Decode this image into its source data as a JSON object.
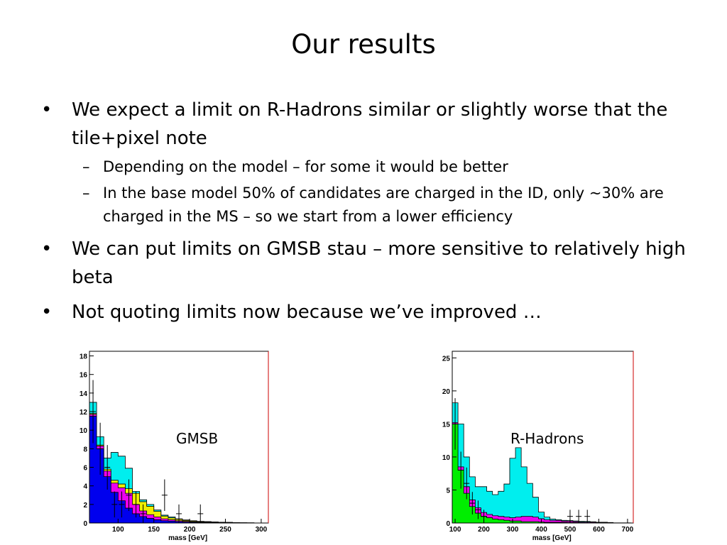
{
  "slide": {
    "title": "Our results",
    "bullets": [
      {
        "text": "We expect a limit on R-Hadrons similar or slightly worse that the tile+pixel note",
        "sub": [
          "Depending on the model – for some it would be better",
          "In the base model 50% of candidates are charged in the ID, only ~30% are charged in the MS – so we start from a lower efficiency"
        ]
      },
      {
        "text": "We can put limits on GMSB stau – more sensitive to relatively high beta",
        "sub": []
      },
      {
        "text": "Not quoting limits now because we’ve improved …",
        "sub": []
      }
    ],
    "bullet_glyph": "•",
    "dash_glyph": "–"
  },
  "chart_data": [
    {
      "type": "area",
      "stacked": true,
      "annotation": "GMSB",
      "xlabel": "mass [GeV]",
      "xlim": [
        60,
        310
      ],
      "ylim": [
        0,
        18.5
      ],
      "xticks": [
        100,
        150,
        200,
        250,
        300
      ],
      "yticks": [
        0,
        2,
        4,
        6,
        8,
        10,
        12,
        14,
        16,
        18
      ],
      "colors": {
        "blue": "#0000ee",
        "magenta": "#ee00ee",
        "yellow": "#eeee00",
        "cyan": "#00eeee"
      },
      "bin_edges": [
        60,
        70,
        80,
        90,
        100,
        110,
        120,
        130,
        140,
        150,
        160,
        170,
        180,
        190,
        200,
        210,
        220,
        230,
        240,
        250,
        260,
        270,
        280,
        290,
        300
      ],
      "series": [
        {
          "color": "blue",
          "values": [
            11.5,
            8.0,
            5.0,
            3.3,
            2.4,
            1.6,
            1.0,
            0.7,
            0.5,
            0.35,
            0.25,
            0.2,
            0.15,
            0.1,
            0.08,
            0.06,
            0.05,
            0.04,
            0.03,
            0.02,
            0.02,
            0.01,
            0.01,
            0.01
          ]
        },
        {
          "color": "magenta",
          "values": [
            0.2,
            0.3,
            0.6,
            1.0,
            1.4,
            1.6,
            1.0,
            0.6,
            0.4,
            0.3,
            0.2,
            0.15,
            0.1,
            0.08,
            0.06,
            0.05,
            0.04,
            0.03,
            0.02,
            0.02,
            0.01,
            0.01,
            0.01,
            0.0
          ]
        },
        {
          "color": "yellow",
          "values": [
            0.1,
            0.1,
            0.2,
            0.3,
            0.4,
            0.5,
            1.2,
            1.0,
            0.9,
            0.6,
            0.3,
            0.2,
            0.15,
            0.1,
            0.08,
            0.05,
            0.04,
            0.03,
            0.02,
            0.02,
            0.01,
            0.01,
            0.0,
            0.0
          ]
        },
        {
          "color": "cyan",
          "values": [
            1.2,
            0.9,
            1.2,
            3.0,
            3.0,
            2.2,
            0.2,
            0.2,
            0.2,
            0.15,
            0.1,
            0.1,
            0.05,
            0.05,
            0.03,
            0.02,
            0.02,
            0.01,
            0.01,
            0.01,
            0.01,
            0.0,
            0.0,
            0.0
          ]
        }
      ],
      "data_points": [
        {
          "x": 65,
          "y": 12,
          "err": 3.4
        },
        {
          "x": 75,
          "y": 8,
          "err": 2.8
        },
        {
          "x": 85,
          "y": 6,
          "err": 2.4
        },
        {
          "x": 95,
          "y": 2,
          "err": 1.4
        },
        {
          "x": 105,
          "y": 2,
          "err": 1.4
        },
        {
          "x": 115,
          "y": 3,
          "err": 1.7
        },
        {
          "x": 125,
          "y": 2,
          "err": 1.4
        },
        {
          "x": 135,
          "y": 1,
          "err": 1.0
        },
        {
          "x": 165,
          "y": 3,
          "err": 1.7
        },
        {
          "x": 185,
          "y": 1,
          "err": 1.0
        },
        {
          "x": 215,
          "y": 1,
          "err": 1.0
        }
      ]
    },
    {
      "type": "area",
      "stacked": true,
      "annotation": "R-Hadrons",
      "xlabel": "mass [GeV]",
      "xlim": [
        90,
        720
      ],
      "ylim": [
        0,
        26
      ],
      "xticks": [
        100,
        200,
        300,
        400,
        500,
        600,
        700
      ],
      "yticks": [
        0,
        5,
        10,
        15,
        20,
        25
      ],
      "colors": {
        "green": "#00ee00",
        "magenta": "#ee00ee",
        "cyan": "#00eeee"
      },
      "bin_edges": [
        90,
        110,
        130,
        150,
        170,
        190,
        210,
        230,
        250,
        270,
        290,
        310,
        330,
        350,
        370,
        390,
        410,
        430,
        450,
        470,
        490,
        510,
        530,
        550,
        570,
        590,
        610,
        630,
        650,
        670,
        690,
        710
      ],
      "series": [
        {
          "color": "green",
          "values": [
            15.0,
            8.0,
            4.5,
            2.5,
            1.5,
            1.0,
            0.8,
            0.6,
            0.5,
            0.4,
            0.3,
            0.3,
            0.2,
            0.2,
            0.2,
            0.15,
            0.1,
            0.1,
            0.1,
            0.1,
            0.08,
            0.06,
            0.05,
            0.04,
            0.03,
            0.02,
            0.02,
            0.01,
            0.01,
            0.01,
            0.01
          ]
        },
        {
          "color": "magenta",
          "values": [
            0.2,
            0.5,
            1.0,
            1.0,
            0.8,
            0.6,
            0.5,
            0.5,
            0.5,
            0.5,
            0.5,
            0.6,
            0.8,
            0.8,
            0.7,
            0.5,
            0.4,
            0.3,
            0.3,
            0.2,
            0.2,
            0.15,
            0.1,
            0.1,
            0.1,
            0.05,
            0.05,
            0.05,
            0.0,
            0.0,
            0.0
          ]
        },
        {
          "color": "cyan",
          "values": [
            3.0,
            6.5,
            4.5,
            3.5,
            3.2,
            3.9,
            3.5,
            3.2,
            3.8,
            5.0,
            9.0,
            10.5,
            7.5,
            5.0,
            3.0,
            1.0,
            0.4,
            0.2,
            0.1,
            0.1,
            0.1,
            0.1,
            0.1,
            0.1,
            0.05,
            0.05,
            0.05,
            0.02,
            0.02,
            0.01,
            0.01
          ]
        }
      ],
      "data_points": [
        {
          "x": 100,
          "y": 15,
          "err": 3.9
        },
        {
          "x": 120,
          "y": 8,
          "err": 2.8
        },
        {
          "x": 140,
          "y": 6,
          "err": 2.4
        },
        {
          "x": 160,
          "y": 3,
          "err": 1.7
        },
        {
          "x": 180,
          "y": 2,
          "err": 1.4
        },
        {
          "x": 200,
          "y": 1,
          "err": 1.0
        },
        {
          "x": 500,
          "y": 1,
          "err": 1.0
        },
        {
          "x": 530,
          "y": 1,
          "err": 1.0
        },
        {
          "x": 560,
          "y": 1,
          "err": 1.0
        }
      ]
    }
  ]
}
